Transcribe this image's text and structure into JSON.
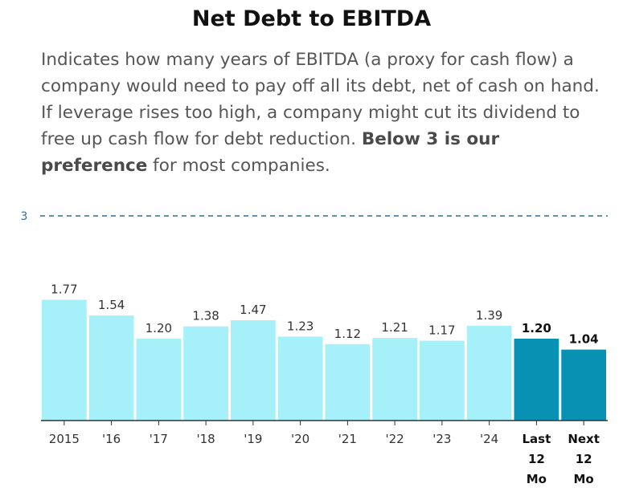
{
  "title": "Net Debt to EBITDA",
  "description": {
    "text": "Indicates how many years of EBITDA (a proxy for cash flow) a company would need to pay off all its debt, net of cash on hand. If leverage rises too high, a company might cut its dividend to free up cash flow for debt reduction.",
    "bold": "Below 3 is our preference",
    "tail": "for most companies."
  },
  "chart_data": {
    "type": "bar",
    "title": "Net Debt to EBITDA",
    "categories": [
      "2015",
      "'16",
      "'17",
      "'18",
      "'19",
      "'20",
      "'21",
      "'22",
      "'23",
      "'24",
      "Last 12 Mo",
      "Next 12 Mo"
    ],
    "category_lines": [
      [
        "2015"
      ],
      [
        "'16"
      ],
      [
        "'17"
      ],
      [
        "'18"
      ],
      [
        "'19"
      ],
      [
        "'20"
      ],
      [
        "'21"
      ],
      [
        "'22"
      ],
      [
        "'23"
      ],
      [
        "'24"
      ],
      [
        "Last",
        "12",
        "Mo"
      ],
      [
        "Next",
        "12",
        "Mo"
      ]
    ],
    "values": [
      1.77,
      1.54,
      1.2,
      1.38,
      1.47,
      1.23,
      1.12,
      1.21,
      1.17,
      1.39,
      1.2,
      1.04
    ],
    "value_labels": [
      "1.77",
      "1.54",
      "1.20",
      "1.38",
      "1.47",
      "1.23",
      "1.12",
      "1.21",
      "1.17",
      "1.39",
      "1.20",
      "1.04"
    ],
    "highlight": [
      false,
      false,
      false,
      false,
      false,
      false,
      false,
      false,
      false,
      false,
      true,
      true
    ],
    "reference_line": {
      "value": 3,
      "label": "3"
    },
    "ylim": [
      0,
      3
    ],
    "xlabel": "",
    "ylabel": "",
    "colors": {
      "bar": "#a6f0fa",
      "highlight": "#0891b2",
      "reference": "#2e6f8e",
      "axis": "#333333"
    }
  }
}
